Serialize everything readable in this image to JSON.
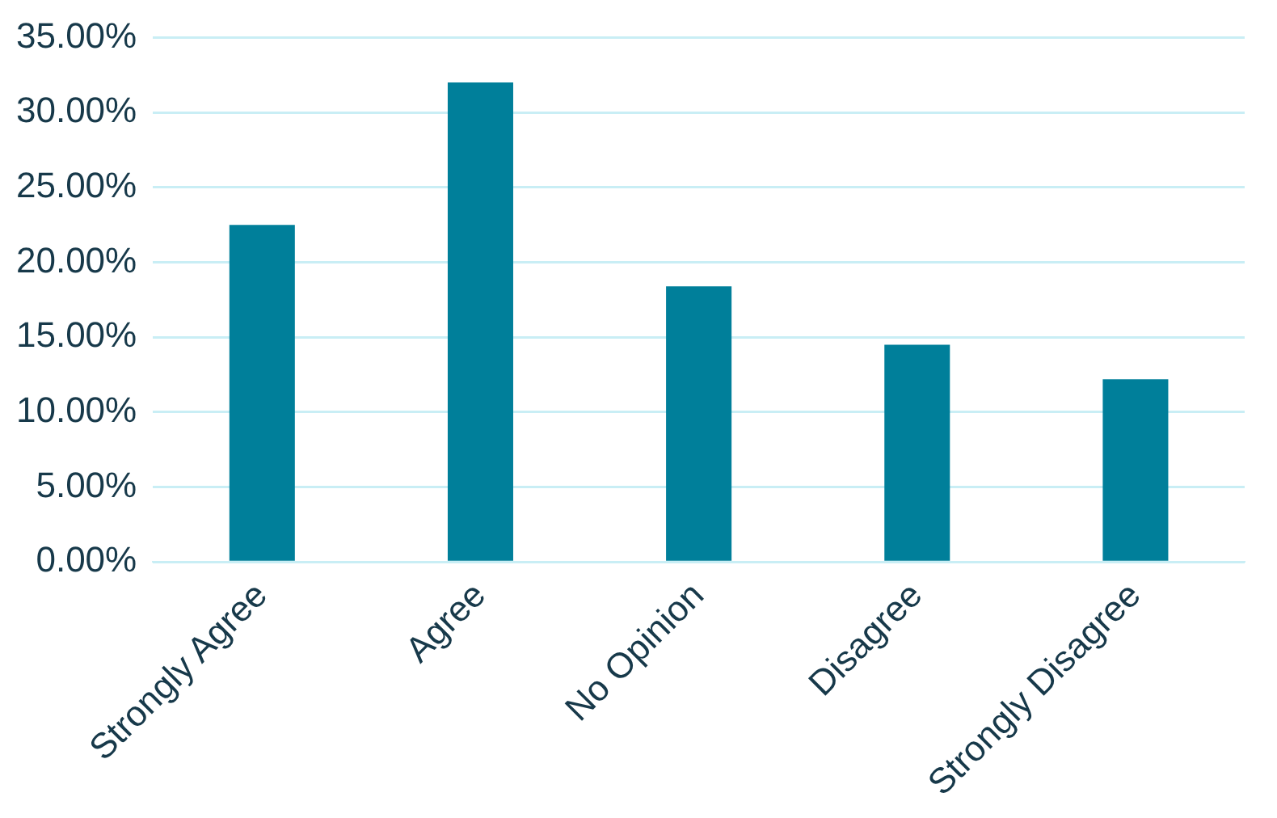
{
  "chart_data": {
    "type": "bar",
    "categories": [
      "Strongly Agree",
      "Agree",
      "No Opinion",
      "Disagree",
      "Strongly Disagree"
    ],
    "values": [
      22.5,
      32.0,
      18.4,
      14.5,
      12.2
    ],
    "color": "#007f9a",
    "ylim": [
      0,
      35
    ],
    "yticks": [
      {
        "value": 0,
        "label": "0.00%"
      },
      {
        "value": 5,
        "label": "5.00%"
      },
      {
        "value": 10,
        "label": "10.00%"
      },
      {
        "value": 15,
        "label": "15.00%"
      },
      {
        "value": 20,
        "label": "20.00%"
      },
      {
        "value": 25,
        "label": "25.00%"
      },
      {
        "value": 30,
        "label": "30.00%"
      },
      {
        "value": 35,
        "label": "35.00%"
      }
    ],
    "grid": "y",
    "legend": false
  }
}
